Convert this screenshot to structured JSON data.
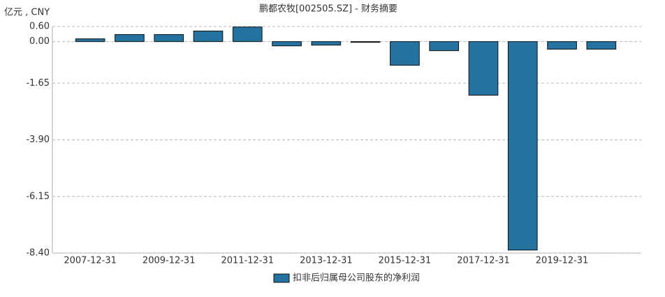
{
  "chart_data": {
    "type": "bar",
    "title": "鹏都农牧[002505.SZ] - 财务摘要",
    "y_label": "亿元 , CNY",
    "categories": [
      "2007-12-31",
      null,
      "2009-12-31",
      null,
      "2011-12-31",
      null,
      "2013-12-31",
      null,
      "2015-12-31",
      null,
      "2017-12-31",
      null,
      "2019-12-31",
      null
    ],
    "series": [
      {
        "name": "扣非后归属母公司股东的净利润",
        "color": "#23729f",
        "values": [
          0.11,
          0.28,
          0.28,
          0.42,
          0.58,
          -0.17,
          -0.14,
          -0.03,
          -0.94,
          -0.36,
          -2.13,
          -8.28,
          -0.3,
          -0.3
        ]
      }
    ],
    "ylim": [
      -8.4,
      0.6
    ],
    "yticks": [
      {
        "value": 0.6,
        "label": "0.60"
      },
      {
        "value": 0,
        "label": "0.00"
      },
      {
        "value": -1.65,
        "label": "-1.65"
      },
      {
        "value": -3.9,
        "label": "-3.90"
      },
      {
        "value": -6.15,
        "label": "-6.15"
      },
      {
        "value": -8.4,
        "label": "-8.40"
      }
    ],
    "grid": true
  }
}
